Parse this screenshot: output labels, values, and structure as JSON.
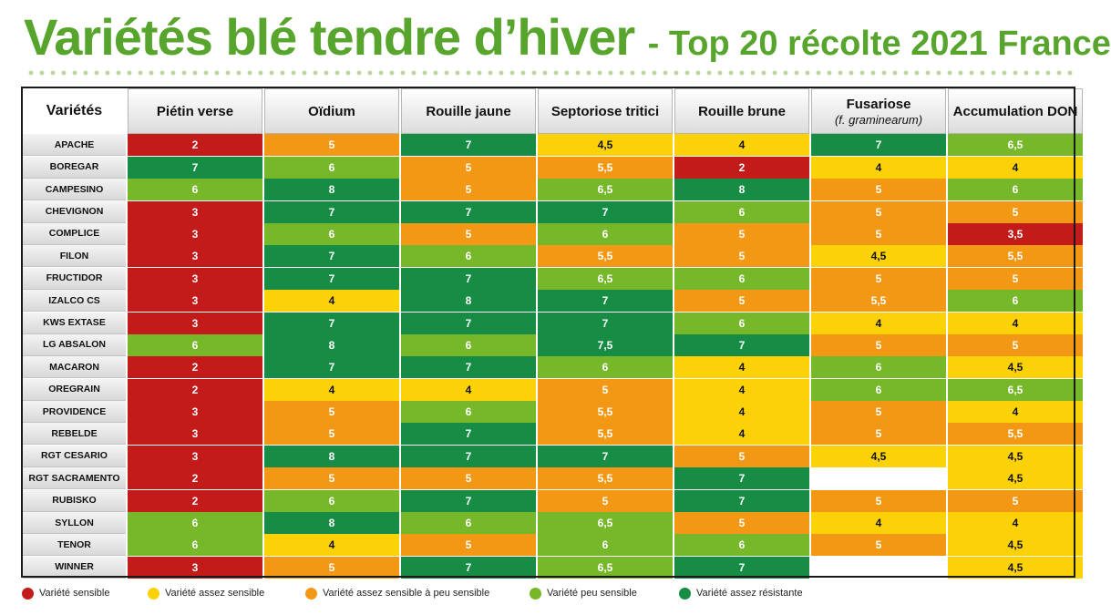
{
  "title": {
    "main": "Variétés blé tendre d’hiver",
    "sub": "- Top 20 récolte 2021 France"
  },
  "colors": {
    "r": "#c31a1a",
    "y": "#fbd107",
    "o": "#f39814",
    "l": "#76b82a",
    "d": "#168c45",
    "w": "#ffffff"
  },
  "table": {
    "headers": [
      {
        "label": "Variétés",
        "sub": ""
      },
      {
        "label": "Piétin verse",
        "sub": ""
      },
      {
        "label": "Oïdium",
        "sub": ""
      },
      {
        "label": "Rouille jaune",
        "sub": ""
      },
      {
        "label": "Septoriose tritici",
        "sub": ""
      },
      {
        "label": "Rouille brune",
        "sub": ""
      },
      {
        "label": "Fusariose",
        "sub": "(f. graminearum)"
      },
      {
        "label": "Accumulation DON",
        "sub": ""
      }
    ],
    "rows": [
      {
        "variety": "APACHE",
        "cells": [
          [
            "2",
            "r"
          ],
          [
            "5",
            "o"
          ],
          [
            "7",
            "d"
          ],
          [
            "4,5",
            "y"
          ],
          [
            "4",
            "y"
          ],
          [
            "7",
            "d"
          ],
          [
            "6,5",
            "l"
          ]
        ]
      },
      {
        "variety": "BOREGAR",
        "cells": [
          [
            "7",
            "d"
          ],
          [
            "6",
            "l"
          ],
          [
            "5",
            "o"
          ],
          [
            "5,5",
            "o"
          ],
          [
            "2",
            "r"
          ],
          [
            "4",
            "y"
          ],
          [
            "4",
            "y"
          ]
        ]
      },
      {
        "variety": "CAMPESINO",
        "cells": [
          [
            "6",
            "l"
          ],
          [
            "8",
            "d"
          ],
          [
            "5",
            "o"
          ],
          [
            "6,5",
            "l"
          ],
          [
            "8",
            "d"
          ],
          [
            "5",
            "o"
          ],
          [
            "6",
            "l"
          ]
        ]
      },
      {
        "variety": "CHEVIGNON",
        "cells": [
          [
            "3",
            "r"
          ],
          [
            "7",
            "d"
          ],
          [
            "7",
            "d"
          ],
          [
            "7",
            "d"
          ],
          [
            "6",
            "l"
          ],
          [
            "5",
            "o"
          ],
          [
            "5",
            "o"
          ]
        ]
      },
      {
        "variety": "COMPLICE",
        "cells": [
          [
            "3",
            "r"
          ],
          [
            "6",
            "l"
          ],
          [
            "5",
            "o"
          ],
          [
            "6",
            "l"
          ],
          [
            "5",
            "o"
          ],
          [
            "5",
            "o"
          ],
          [
            "3,5",
            "r"
          ]
        ]
      },
      {
        "variety": "FILON",
        "cells": [
          [
            "3",
            "r"
          ],
          [
            "7",
            "d"
          ],
          [
            "6",
            "l"
          ],
          [
            "5,5",
            "o"
          ],
          [
            "5",
            "o"
          ],
          [
            "4,5",
            "y"
          ],
          [
            "5,5",
            "o"
          ]
        ]
      },
      {
        "variety": "FRUCTIDOR",
        "cells": [
          [
            "3",
            "r"
          ],
          [
            "7",
            "d"
          ],
          [
            "7",
            "d"
          ],
          [
            "6,5",
            "l"
          ],
          [
            "6",
            "l"
          ],
          [
            "5",
            "o"
          ],
          [
            "5",
            "o"
          ]
        ]
      },
      {
        "variety": "IZALCO CS",
        "cells": [
          [
            "3",
            "r"
          ],
          [
            "4",
            "y"
          ],
          [
            "8",
            "d"
          ],
          [
            "7",
            "d"
          ],
          [
            "5",
            "o"
          ],
          [
            "5,5",
            "o"
          ],
          [
            "6",
            "l"
          ]
        ]
      },
      {
        "variety": "KWS EXTASE",
        "cells": [
          [
            "3",
            "r"
          ],
          [
            "7",
            "d"
          ],
          [
            "7",
            "d"
          ],
          [
            "7",
            "d"
          ],
          [
            "6",
            "l"
          ],
          [
            "4",
            "y"
          ],
          [
            "4",
            "y"
          ]
        ]
      },
      {
        "variety": "LG ABSALON",
        "cells": [
          [
            "6",
            "l"
          ],
          [
            "8",
            "d"
          ],
          [
            "6",
            "l"
          ],
          [
            "7,5",
            "d"
          ],
          [
            "7",
            "d"
          ],
          [
            "5",
            "o"
          ],
          [
            "5",
            "o"
          ]
        ]
      },
      {
        "variety": "MACARON",
        "cells": [
          [
            "2",
            "r"
          ],
          [
            "7",
            "d"
          ],
          [
            "7",
            "d"
          ],
          [
            "6",
            "l"
          ],
          [
            "4",
            "y"
          ],
          [
            "6",
            "l"
          ],
          [
            "4,5",
            "y"
          ]
        ]
      },
      {
        "variety": "OREGRAIN",
        "cells": [
          [
            "2",
            "r"
          ],
          [
            "4",
            "y"
          ],
          [
            "4",
            "y"
          ],
          [
            "5",
            "o"
          ],
          [
            "4",
            "y"
          ],
          [
            "6",
            "l"
          ],
          [
            "6,5",
            "l"
          ]
        ]
      },
      {
        "variety": "PROVIDENCE",
        "cells": [
          [
            "3",
            "r"
          ],
          [
            "5",
            "o"
          ],
          [
            "6",
            "l"
          ],
          [
            "5,5",
            "o"
          ],
          [
            "4",
            "y"
          ],
          [
            "5",
            "o"
          ],
          [
            "4",
            "y"
          ]
        ]
      },
      {
        "variety": "REBELDE",
        "cells": [
          [
            "3",
            "r"
          ],
          [
            "5",
            "o"
          ],
          [
            "7",
            "d"
          ],
          [
            "5,5",
            "o"
          ],
          [
            "4",
            "y"
          ],
          [
            "5",
            "o"
          ],
          [
            "5,5",
            "o"
          ]
        ]
      },
      {
        "variety": "RGT CESARIO",
        "cells": [
          [
            "3",
            "r"
          ],
          [
            "8",
            "d"
          ],
          [
            "7",
            "d"
          ],
          [
            "7",
            "d"
          ],
          [
            "5",
            "o"
          ],
          [
            "4,5",
            "y"
          ],
          [
            "4,5",
            "y"
          ]
        ]
      },
      {
        "variety": "RGT SACRAMENTO",
        "cells": [
          [
            "2",
            "r"
          ],
          [
            "5",
            "o"
          ],
          [
            "5",
            "o"
          ],
          [
            "5,5",
            "o"
          ],
          [
            "7",
            "d"
          ],
          [
            "",
            "w"
          ],
          [
            "4,5",
            "y"
          ]
        ]
      },
      {
        "variety": "RUBISKO",
        "cells": [
          [
            "2",
            "r"
          ],
          [
            "6",
            "l"
          ],
          [
            "7",
            "d"
          ],
          [
            "5",
            "o"
          ],
          [
            "7",
            "d"
          ],
          [
            "5",
            "o"
          ],
          [
            "5",
            "o"
          ]
        ]
      },
      {
        "variety": "SYLLON",
        "cells": [
          [
            "6",
            "l"
          ],
          [
            "8",
            "d"
          ],
          [
            "6",
            "l"
          ],
          [
            "6,5",
            "l"
          ],
          [
            "5",
            "o"
          ],
          [
            "4",
            "y"
          ],
          [
            "4",
            "y"
          ]
        ]
      },
      {
        "variety": "TENOR",
        "cells": [
          [
            "6",
            "l"
          ],
          [
            "4",
            "y"
          ],
          [
            "5",
            "o"
          ],
          [
            "6",
            "l"
          ],
          [
            "6",
            "l"
          ],
          [
            "5",
            "o"
          ],
          [
            "4,5",
            "y"
          ]
        ]
      },
      {
        "variety": "WINNER",
        "cells": [
          [
            "3",
            "r"
          ],
          [
            "5",
            "o"
          ],
          [
            "7",
            "d"
          ],
          [
            "6,5",
            "l"
          ],
          [
            "7",
            "d"
          ],
          [
            "",
            "w"
          ],
          [
            "4,5",
            "y"
          ]
        ]
      }
    ]
  },
  "legend": [
    {
      "label": "Variété sensible",
      "color": "#c31a1a"
    },
    {
      "label": "Variété assez sensible",
      "color": "#fbd107"
    },
    {
      "label": "Variété assez sensible à peu sensible",
      "color": "#f39814"
    },
    {
      "label": "Variété peu sensible",
      "color": "#76b82a"
    },
    {
      "label": "Variété assez résistante",
      "color": "#168c45"
    }
  ]
}
